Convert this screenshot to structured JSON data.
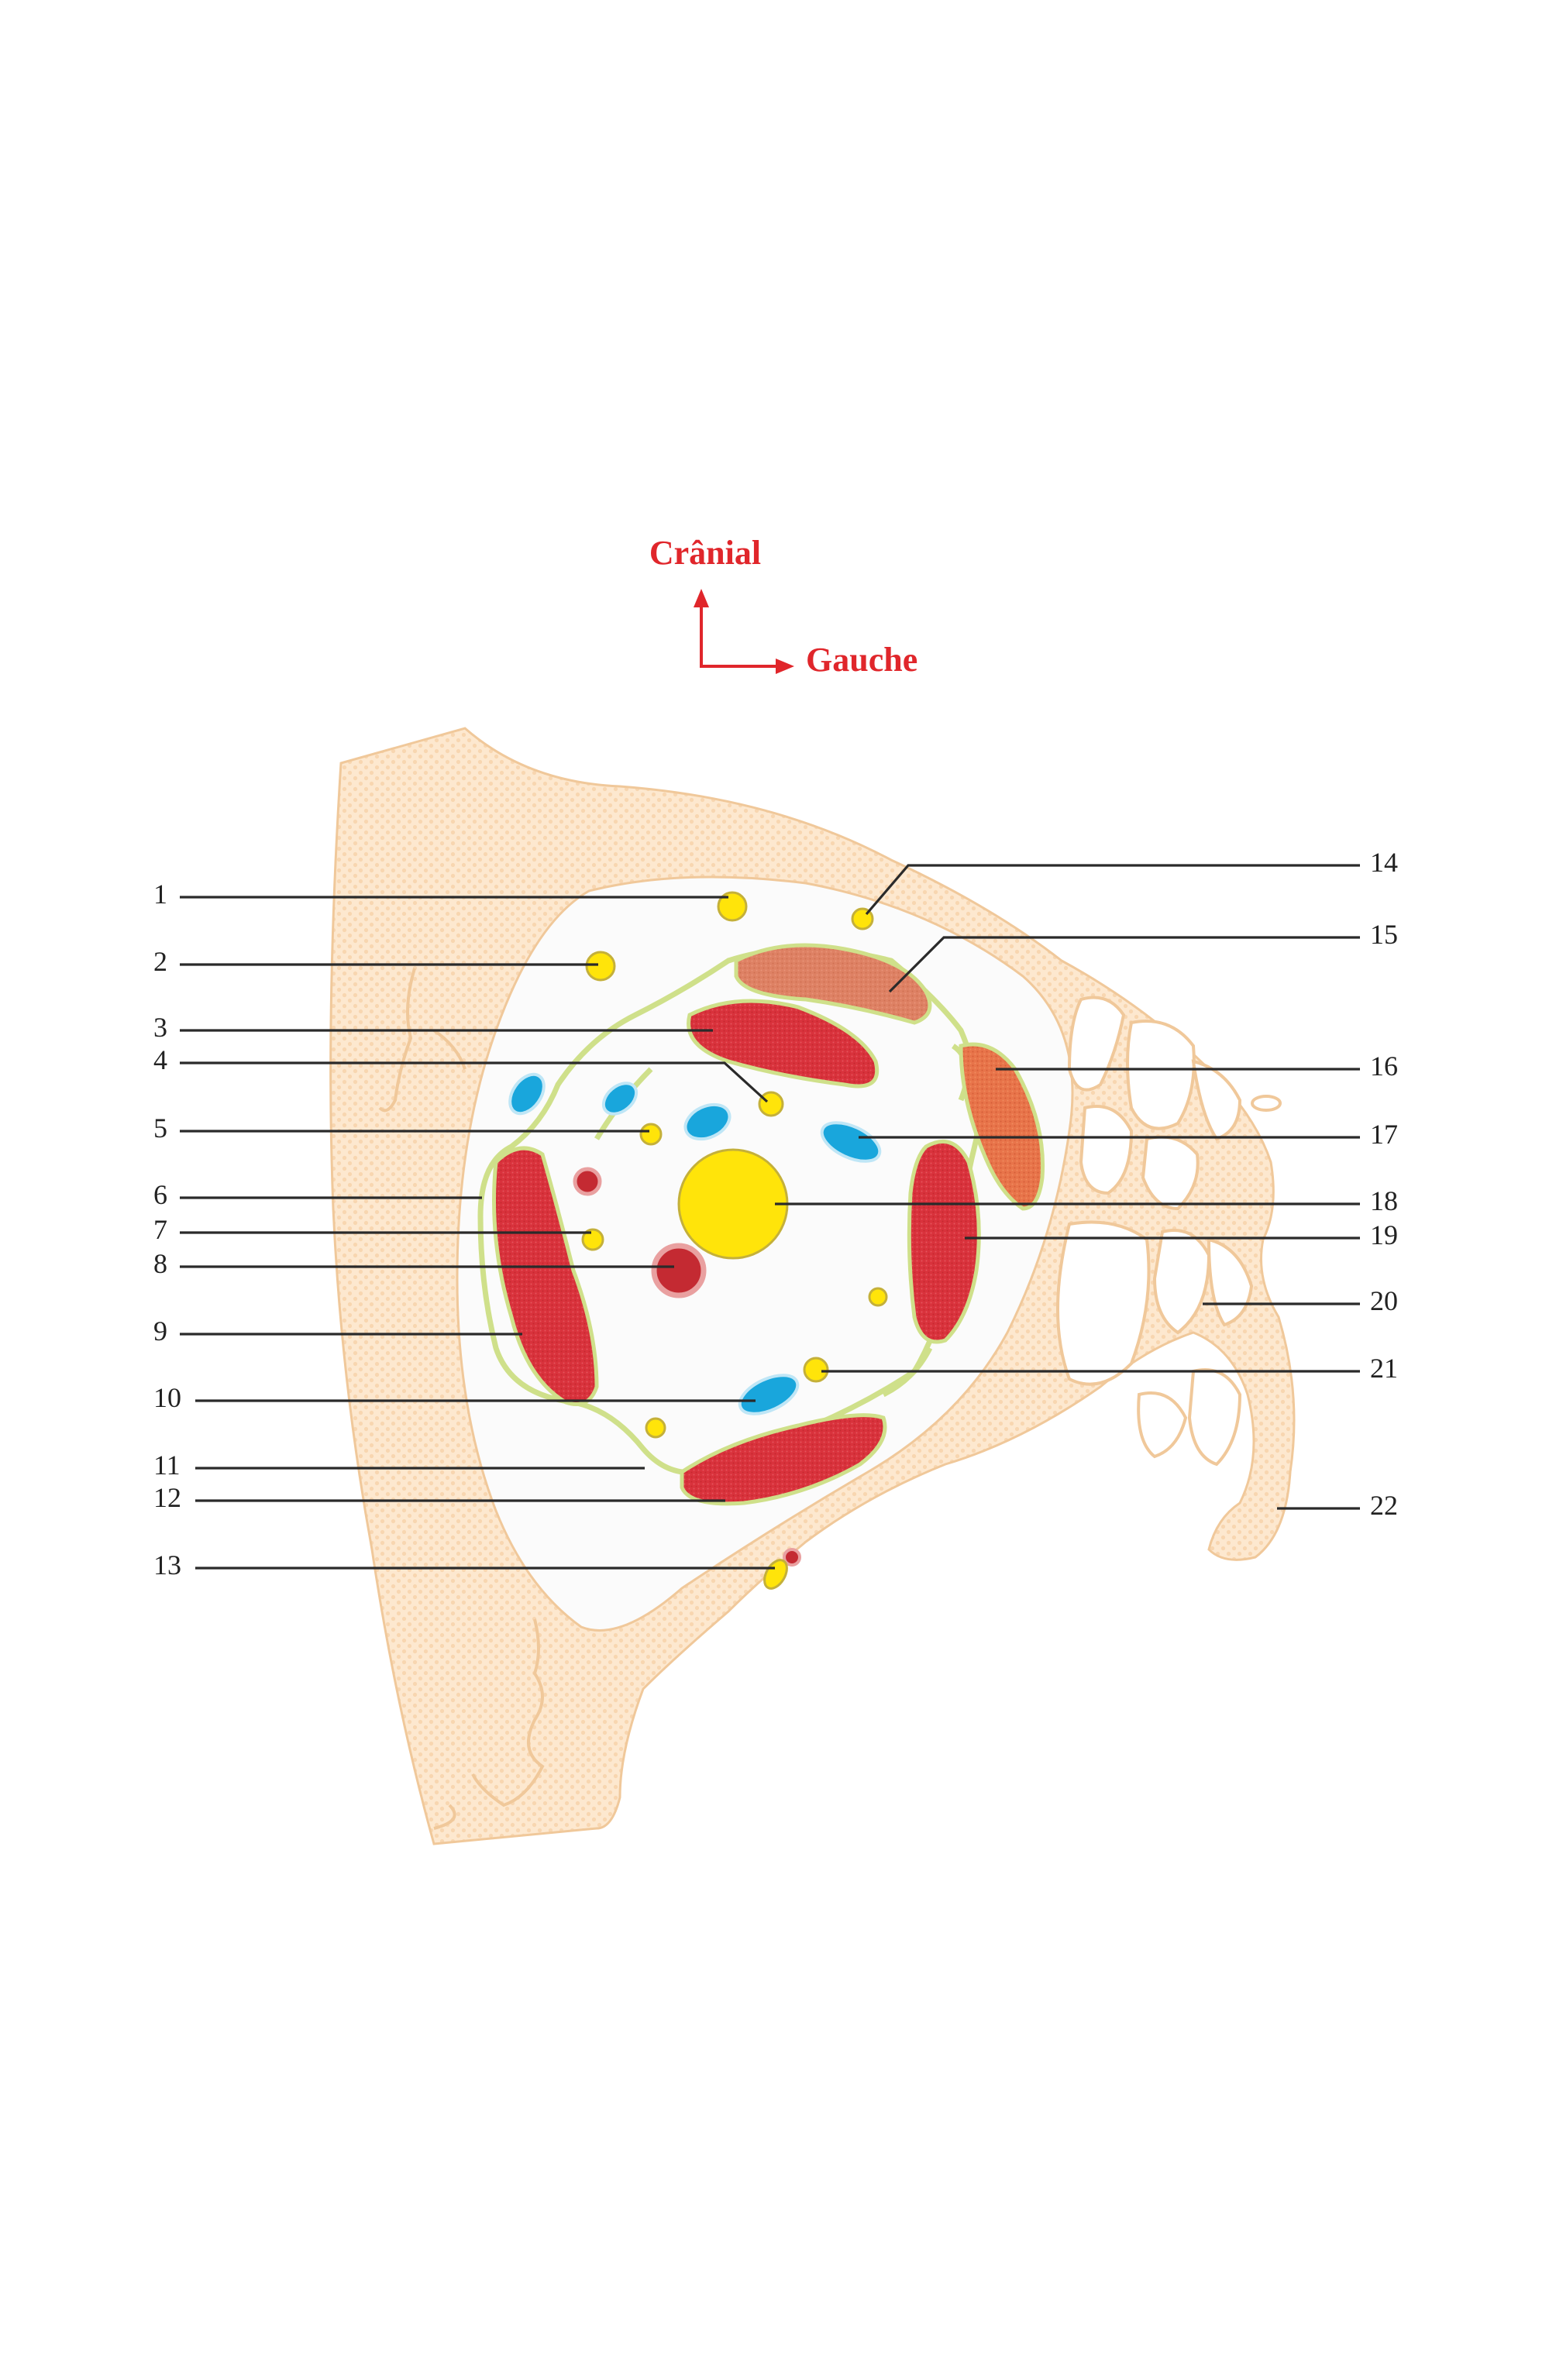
{
  "orientation": {
    "up_label": "Crânial",
    "right_label": "Gauche",
    "arrow_color": "#e0262b"
  },
  "colors": {
    "bone": "#fde8cf",
    "bone_outline": "#f0c89a",
    "fat": "#fbfbfb",
    "fascia": "#cfe08a",
    "muscle": "#d9323c",
    "muscle_pale": "#e07a58",
    "nerve": "#ffe40a",
    "vein": "#19a6dc",
    "artery": "#c42a32"
  },
  "labels": {
    "left": [
      "1",
      "2",
      "3",
      "4",
      "5",
      "6",
      "7",
      "8",
      "9",
      "10",
      "11",
      "12",
      "13"
    ],
    "right": [
      "14",
      "15",
      "16",
      "17",
      "18",
      "19",
      "20",
      "21",
      "22"
    ]
  }
}
